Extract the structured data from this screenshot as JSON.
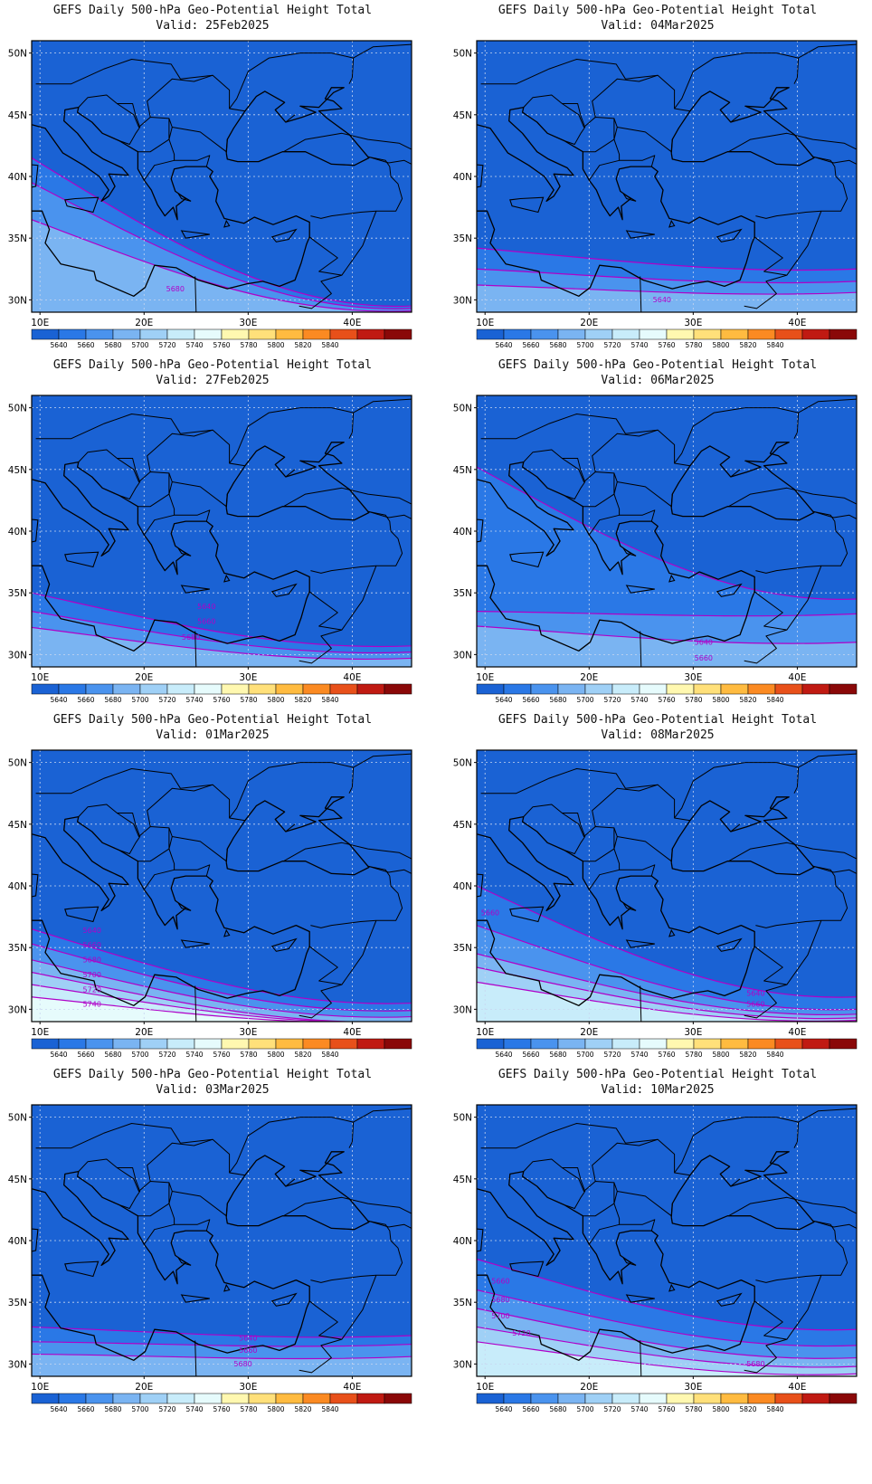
{
  "colors": {
    "levels": [
      "#1a62d4",
      "#2a78e6",
      "#4a93ee",
      "#7ab4f2",
      "#9fd0f6",
      "#c8ecfa",
      "#e6fbfc",
      "#fff8b0",
      "#ffe07a",
      "#ffbb40",
      "#fb8a22",
      "#e8501a",
      "#c01a12",
      "#8a0808"
    ],
    "contour": "#b000c8",
    "coast": "#000000"
  },
  "colorbar_labels": [
    "5640",
    "5660",
    "5680",
    "5700",
    "5720",
    "5740",
    "5760",
    "5780",
    "5800",
    "5820",
    "5840"
  ],
  "x_ticks": [
    "10E",
    "20E",
    "30E",
    "40E"
  ],
  "y_ticks": [
    "50N",
    "45N",
    "40N",
    "35N",
    "30N"
  ],
  "panels": [
    {
      "title": "GEFS Daily 500-hPa Geo-Potential Height Total",
      "valid": "Valid: 25Feb2025",
      "chart_data": {
        "type": "heatmap",
        "variable": "500-hPa geopotential height (m)",
        "x_range": [
          9.2,
          45.7
        ],
        "y_range": [
          29,
          51
        ],
        "contours": [
          {
            "level": 5640,
            "y_west": 41.5,
            "y_east": 29.5
          },
          {
            "level": 5660,
            "y_west": 39.5,
            "y_east": 29.3
          },
          {
            "level": 5680,
            "y_west": 36.5,
            "y_east": 29.1
          }
        ],
        "labels": [
          {
            "text": "5680",
            "lon": 23,
            "lat": 30.7
          }
        ]
      }
    },
    {
      "title": "GEFS Daily 500-hPa Geo-Potential Height Total",
      "valid": "Valid: 04Mar2025",
      "chart_data": {
        "type": "heatmap",
        "variable": "500-hPa geopotential height (m)",
        "x_range": [
          9.2,
          45.7
        ],
        "y_range": [
          29,
          51
        ],
        "contours": [
          {
            "level": 5640,
            "y_west": 34.2,
            "y_east": 32.5
          },
          {
            "level": 5660,
            "y_west": 32.5,
            "y_east": 31.5
          },
          {
            "level": 5680,
            "y_west": 31.2,
            "y_east": 30.6
          }
        ],
        "labels": [
          {
            "text": "5640",
            "lon": 27,
            "lat": 29.8
          }
        ]
      }
    },
    {
      "title": "GEFS Daily 500-hPa Geo-Potential Height Total",
      "valid": "Valid: 27Feb2025",
      "chart_data": {
        "type": "heatmap",
        "variable": "500-hPa geopotential height (m)",
        "x_range": [
          9.2,
          45.7
        ],
        "y_range": [
          29,
          51
        ],
        "contours": [
          {
            "level": 5640,
            "y_west": 35.0,
            "y_east": 30.7
          },
          {
            "level": 5660,
            "y_west": 33.5,
            "y_east": 30.2
          },
          {
            "level": 5680,
            "y_west": 32.2,
            "y_east": 29.7
          }
        ],
        "labels": [
          {
            "text": "5640",
            "lon": 26,
            "lat": 33.7
          },
          {
            "text": "5660",
            "lon": 26,
            "lat": 32.5
          },
          {
            "text": "5680",
            "lon": 24.5,
            "lat": 31.2
          }
        ]
      }
    },
    {
      "title": "GEFS Daily 500-hPa Geo-Potential Height Total",
      "valid": "Valid: 06Mar2025",
      "chart_data": {
        "type": "heatmap",
        "variable": "500-hPa geopotential height (m)",
        "x_range": [
          9.2,
          45.7
        ],
        "y_range": [
          29,
          51
        ],
        "contours": [
          {
            "level": 5640,
            "y_west": 45.2,
            "y_east": 34.5
          },
          {
            "level": 5660,
            "y_west": 33.5,
            "y_east": 33.3
          },
          {
            "level": 5680,
            "y_west": 32.3,
            "y_east": 31.0
          }
        ],
        "labels": [
          {
            "text": "5640",
            "lon": 31,
            "lat": 30.8
          },
          {
            "text": "5660",
            "lon": 31,
            "lat": 29.5
          }
        ]
      }
    },
    {
      "title": "GEFS Daily 500-hPa Geo-Potential Height Total",
      "valid": "Valid: 01Mar2025",
      "chart_data": {
        "type": "heatmap",
        "variable": "500-hPa geopotential height (m)",
        "x_range": [
          9.2,
          45.7
        ],
        "y_range": [
          29,
          51
        ],
        "contours": [
          {
            "level": 5640,
            "y_west": 36.5,
            "y_east": 30.5
          },
          {
            "level": 5660,
            "y_west": 35.3,
            "y_east": 29.9
          },
          {
            "level": 5680,
            "y_west": 34.0,
            "y_east": 29.4
          },
          {
            "level": 5700,
            "y_west": 33.0,
            "y_east": 29.0
          },
          {
            "level": 5720,
            "y_west": 32.0,
            "y_east": 29.0
          },
          {
            "level": 5740,
            "y_west": 31.0,
            "y_east": 29.0
          }
        ],
        "labels": [
          {
            "text": "5640",
            "lon": 15,
            "lat": 36.2
          },
          {
            "text": "5660",
            "lon": 15,
            "lat": 35.0
          },
          {
            "text": "5680",
            "lon": 15,
            "lat": 33.8
          },
          {
            "text": "5700",
            "lon": 15,
            "lat": 32.6
          },
          {
            "text": "5720",
            "lon": 15,
            "lat": 31.4
          },
          {
            "text": "5740",
            "lon": 15,
            "lat": 30.2
          }
        ]
      }
    },
    {
      "title": "GEFS Daily 500-hPa Geo-Potential Height Total",
      "valid": "Valid: 08Mar2025",
      "chart_data": {
        "type": "heatmap",
        "variable": "500-hPa geopotential height (m)",
        "x_range": [
          9.2,
          45.7
        ],
        "y_range": [
          29,
          51
        ],
        "contours": [
          {
            "level": 5640,
            "y_west": 40.0,
            "y_east": 31.0
          },
          {
            "level": 5660,
            "y_west": 36.8,
            "y_east": 30.0
          },
          {
            "level": 5680,
            "y_west": 34.5,
            "y_east": 29.6
          },
          {
            "level": 5700,
            "y_west": 33.4,
            "y_east": 29.3
          },
          {
            "level": 5720,
            "y_west": 32.2,
            "y_east": 29.1
          }
        ],
        "labels": [
          {
            "text": "5660",
            "lon": 10.5,
            "lat": 37.6
          },
          {
            "text": "5640",
            "lon": 36,
            "lat": 31.1
          },
          {
            "text": "5660",
            "lon": 36,
            "lat": 30.2
          }
        ]
      }
    },
    {
      "title": "GEFS Daily 500-hPa Geo-Potential Height Total",
      "valid": "Valid: 03Mar2025",
      "chart_data": {
        "type": "heatmap",
        "variable": "500-hPa geopotential height (m)",
        "x_range": [
          9.2,
          45.7
        ],
        "y_range": [
          29,
          51
        ],
        "contours": [
          {
            "level": 5640,
            "y_west": 33.0,
            "y_east": 32.3
          },
          {
            "level": 5660,
            "y_west": 31.8,
            "y_east": 31.6
          },
          {
            "level": 5680,
            "y_west": 30.8,
            "y_east": 30.6
          }
        ],
        "labels": [
          {
            "text": "5640",
            "lon": 30,
            "lat": 31.9
          },
          {
            "text": "5660",
            "lon": 30,
            "lat": 30.9
          },
          {
            "text": "5680",
            "lon": 29.5,
            "lat": 29.8
          }
        ]
      }
    },
    {
      "title": "GEFS Daily 500-hPa Geo-Potential Height Total",
      "valid": "Valid: 10Mar2025",
      "chart_data": {
        "type": "heatmap",
        "variable": "500-hPa geopotential height (m)",
        "x_range": [
          9.2,
          45.7
        ],
        "y_range": [
          29,
          51
        ],
        "contours": [
          {
            "level": 5640,
            "y_west": 38.5,
            "y_east": 32.8
          },
          {
            "level": 5660,
            "y_west": 36.0,
            "y_east": 31.5
          },
          {
            "level": 5680,
            "y_west": 34.5,
            "y_east": 30.5
          },
          {
            "level": 5700,
            "y_west": 33.0,
            "y_east": 29.8
          },
          {
            "level": 5720,
            "y_west": 31.8,
            "y_east": 29.2
          }
        ],
        "labels": [
          {
            "text": "5660",
            "lon": 11.5,
            "lat": 36.5
          },
          {
            "text": "5680",
            "lon": 11.5,
            "lat": 35.0
          },
          {
            "text": "5700",
            "lon": 11.5,
            "lat": 33.7
          },
          {
            "text": "5720",
            "lon": 13.5,
            "lat": 32.3
          },
          {
            "text": "5680",
            "lon": 36,
            "lat": 29.8
          }
        ]
      }
    }
  ]
}
